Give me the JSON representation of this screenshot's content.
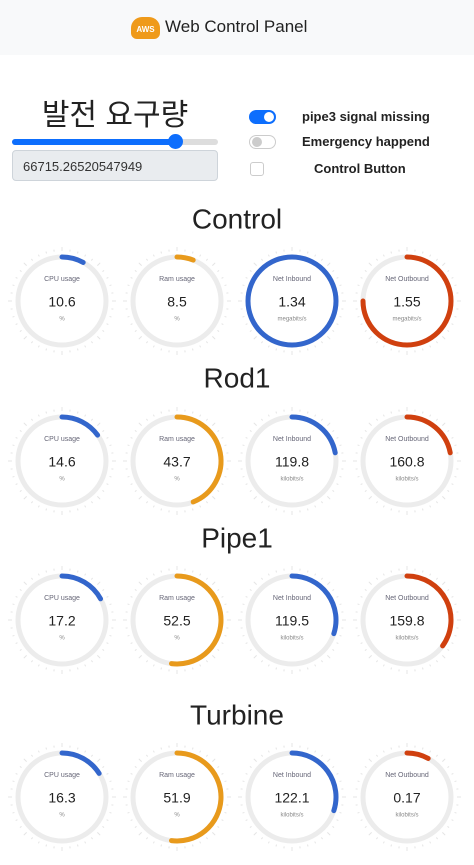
{
  "header": {
    "logo": "AWS",
    "title": "Web Control Panel"
  },
  "controls": {
    "heading": "발전 요구량",
    "input_value": "66715.26520547949",
    "toggles": [
      {
        "label": "pipe3 signal missing",
        "kind": "switch",
        "on": true
      },
      {
        "label": "Emergency happend",
        "kind": "switch",
        "on": false
      },
      {
        "label": "Control Button",
        "kind": "checkbox",
        "on": false
      }
    ]
  },
  "sections": [
    {
      "title": "Control",
      "gauges": [
        {
          "label": "CPU usage",
          "value": 10.6,
          "unit": "%",
          "color": "#3366cc"
        },
        {
          "label": "Ram usage",
          "value": 8.5,
          "unit": "%",
          "color": "#e89a1c"
        },
        {
          "label": "Net Inbound",
          "value": 1.34,
          "unit": "megabits/s",
          "color": "#3366cc"
        },
        {
          "label": "Net Outbound",
          "value": 1.55,
          "unit": "megabits/s",
          "color": "#d0400f"
        }
      ]
    },
    {
      "title": "Rod1",
      "gauges": [
        {
          "label": "CPU usage",
          "value": 14.6,
          "unit": "%",
          "color": "#3366cc"
        },
        {
          "label": "Ram usage",
          "value": 43.7,
          "unit": "%",
          "color": "#e89a1c"
        },
        {
          "label": "Net Inbound",
          "value": 119.8,
          "unit": "kilobits/s",
          "color": "#3366cc"
        },
        {
          "label": "Net Outbound",
          "value": 160.8,
          "unit": "kilobits/s",
          "color": "#d0400f"
        }
      ]
    },
    {
      "title": "Pipe1",
      "gauges": [
        {
          "label": "CPU usage",
          "value": 17.2,
          "unit": "%",
          "color": "#3366cc"
        },
        {
          "label": "Ram usage",
          "value": 52.5,
          "unit": "%",
          "color": "#e89a1c"
        },
        {
          "label": "Net Inbound",
          "value": 119.5,
          "unit": "kilobits/s",
          "color": "#3366cc"
        },
        {
          "label": "Net Outbound",
          "value": 159.8,
          "unit": "kilobits/s",
          "color": "#d0400f"
        }
      ]
    },
    {
      "title": "Turbine",
      "gauges": [
        {
          "label": "CPU usage",
          "value": 16.3,
          "unit": "%",
          "color": "#3366cc"
        },
        {
          "label": "Ram usage",
          "value": 51.9,
          "unit": "%",
          "color": "#e89a1c"
        },
        {
          "label": "Net Inbound",
          "value": 122.1,
          "unit": "kilobits/s",
          "color": "#3366cc"
        },
        {
          "label": "Net Outbound",
          "value": 0.17,
          "unit": "kilobits/s",
          "color": "#d0400f"
        }
      ]
    }
  ]
}
